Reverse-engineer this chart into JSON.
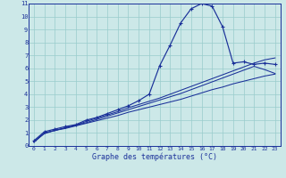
{
  "xlabel": "Graphe des températures (°C)",
  "bg_color": "#cce8e8",
  "grid_color": "#99cccc",
  "line_color": "#1a3099",
  "xlim": [
    -0.5,
    23.5
  ],
  "ylim": [
    0,
    11
  ],
  "xticks": [
    0,
    1,
    2,
    3,
    4,
    5,
    6,
    7,
    8,
    9,
    10,
    11,
    12,
    13,
    14,
    15,
    16,
    17,
    18,
    19,
    20,
    21,
    22,
    23
  ],
  "yticks": [
    0,
    1,
    2,
    3,
    4,
    5,
    6,
    7,
    8,
    9,
    10,
    11
  ],
  "main_x": [
    0,
    1,
    2,
    3,
    4,
    5,
    6,
    7,
    8,
    9,
    10,
    11,
    12,
    13,
    14,
    15,
    16,
    17,
    18,
    19,
    20,
    21,
    22,
    23
  ],
  "main_y": [
    0.4,
    1.1,
    1.3,
    1.5,
    1.65,
    2.0,
    2.2,
    2.5,
    2.8,
    3.1,
    3.5,
    4.0,
    6.2,
    7.8,
    9.5,
    10.6,
    11.0,
    10.8,
    9.2,
    6.4,
    6.5,
    6.3,
    6.4,
    6.3
  ],
  "line2_x": [
    0,
    1,
    2,
    3,
    4,
    5,
    6,
    7,
    8,
    9,
    10,
    11,
    12,
    13,
    14,
    15,
    16,
    17,
    18,
    19,
    20,
    21,
    22,
    23
  ],
  "line2_y": [
    0.3,
    1.0,
    1.2,
    1.4,
    1.6,
    1.8,
    2.05,
    2.3,
    2.55,
    2.8,
    3.05,
    3.3,
    3.55,
    3.8,
    4.05,
    4.35,
    4.65,
    4.95,
    5.25,
    5.55,
    5.85,
    6.15,
    5.9,
    5.6
  ],
  "line3_x": [
    0,
    1,
    2,
    3,
    4,
    5,
    6,
    7,
    8,
    9,
    10,
    11,
    12,
    13,
    14,
    15,
    16,
    17,
    18,
    19,
    20,
    21,
    22,
    23
  ],
  "line3_y": [
    0.3,
    0.95,
    1.2,
    1.35,
    1.55,
    1.75,
    1.95,
    2.15,
    2.35,
    2.6,
    2.8,
    3.0,
    3.2,
    3.4,
    3.6,
    3.85,
    4.1,
    4.35,
    4.55,
    4.8,
    5.0,
    5.2,
    5.4,
    5.55
  ],
  "line4_x": [
    0,
    1,
    2,
    3,
    4,
    5,
    6,
    7,
    8,
    9,
    10,
    11,
    12,
    13,
    14,
    15,
    16,
    17,
    18,
    19,
    20,
    21,
    22,
    23
  ],
  "line4_y": [
    0.3,
    1.0,
    1.2,
    1.4,
    1.6,
    1.9,
    2.15,
    2.4,
    2.65,
    2.95,
    3.2,
    3.45,
    3.7,
    4.0,
    4.3,
    4.6,
    4.9,
    5.2,
    5.5,
    5.8,
    6.1,
    6.4,
    6.65,
    6.8
  ]
}
